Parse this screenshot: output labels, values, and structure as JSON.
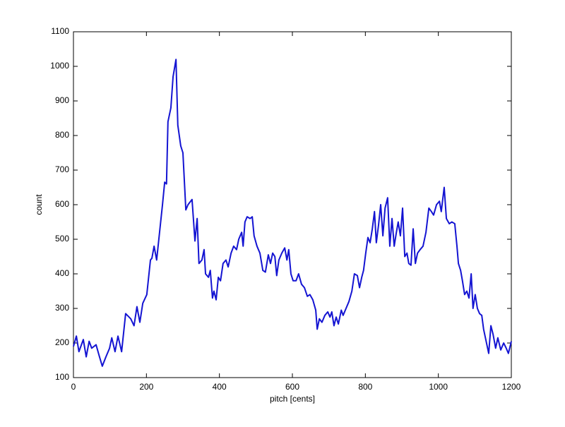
{
  "chart_data": {
    "type": "line",
    "xlabel": "pitch [cents]",
    "ylabel": "count",
    "color": "#1414d2",
    "x": [
      0,
      8,
      15,
      27,
      35,
      43,
      50,
      62,
      70,
      79,
      89,
      99,
      105,
      114,
      122,
      132,
      143,
      157,
      166,
      174,
      182,
      190,
      201,
      211,
      215,
      221,
      228,
      236,
      244,
      250,
      255,
      259,
      267,
      273,
      281,
      286,
      294,
      300,
      308,
      314,
      325,
      333,
      339,
      344,
      352,
      358,
      362,
      370,
      375,
      381,
      385,
      391,
      397,
      403,
      410,
      418,
      424,
      432,
      439,
      447,
      453,
      461,
      465,
      470,
      476,
      484,
      490,
      495,
      503,
      511,
      519,
      526,
      534,
      540,
      546,
      552,
      557,
      563,
      571,
      579,
      585,
      590,
      596,
      602,
      610,
      617,
      625,
      633,
      641,
      648,
      656,
      664,
      668,
      674,
      681,
      689,
      697,
      703,
      708,
      714,
      720,
      726,
      734,
      739,
      747,
      755,
      763,
      770,
      778,
      784,
      790,
      795,
      801,
      807,
      813,
      819,
      825,
      830,
      836,
      842,
      848,
      854,
      861,
      867,
      873,
      879,
      885,
      890,
      896,
      902,
      908,
      914,
      919,
      925,
      931,
      937,
      943,
      950,
      958,
      966,
      974,
      981,
      987,
      995,
      1003,
      1008,
      1016,
      1022,
      1030,
      1037,
      1045,
      1051,
      1055,
      1061,
      1066,
      1072,
      1078,
      1084,
      1090,
      1095,
      1101,
      1107,
      1113,
      1119,
      1124,
      1130,
      1138,
      1144,
      1150,
      1157,
      1163,
      1171,
      1179,
      1186,
      1192,
      1200
    ],
    "values": [
      190,
      220,
      175,
      210,
      160,
      205,
      185,
      195,
      165,
      133,
      160,
      185,
      215,
      175,
      220,
      175,
      285,
      270,
      250,
      305,
      260,
      315,
      340,
      440,
      445,
      480,
      440,
      520,
      600,
      665,
      660,
      840,
      880,
      970,
      1020,
      830,
      770,
      750,
      585,
      600,
      615,
      495,
      560,
      430,
      440,
      470,
      400,
      390,
      410,
      330,
      350,
      325,
      390,
      380,
      430,
      440,
      420,
      460,
      480,
      470,
      500,
      520,
      480,
      550,
      565,
      560,
      565,
      510,
      480,
      460,
      410,
      405,
      455,
      430,
      460,
      450,
      395,
      440,
      460,
      475,
      440,
      470,
      400,
      380,
      380,
      400,
      370,
      360,
      335,
      340,
      325,
      295,
      240,
      270,
      260,
      280,
      290,
      275,
      290,
      250,
      275,
      255,
      295,
      280,
      300,
      320,
      350,
      400,
      395,
      360,
      390,
      410,
      460,
      505,
      490,
      530,
      580,
      490,
      540,
      600,
      510,
      590,
      620,
      480,
      560,
      480,
      520,
      550,
      510,
      590,
      450,
      460,
      430,
      425,
      530,
      430,
      460,
      470,
      480,
      520,
      590,
      580,
      570,
      600,
      610,
      580,
      650,
      560,
      545,
      550,
      545,
      480,
      430,
      410,
      380,
      340,
      350,
      330,
      400,
      300,
      340,
      300,
      285,
      280,
      240,
      210,
      170,
      250,
      225,
      185,
      215,
      180,
      200,
      185,
      170,
      205
    ],
    "xlim": [
      0,
      1200
    ],
    "xticks": [
      0,
      200,
      400,
      600,
      800,
      1000,
      1200
    ],
    "ylim": [
      100,
      1100
    ],
    "yticks": [
      100,
      200,
      300,
      400,
      500,
      600,
      700,
      800,
      900,
      1000,
      1100
    ]
  }
}
